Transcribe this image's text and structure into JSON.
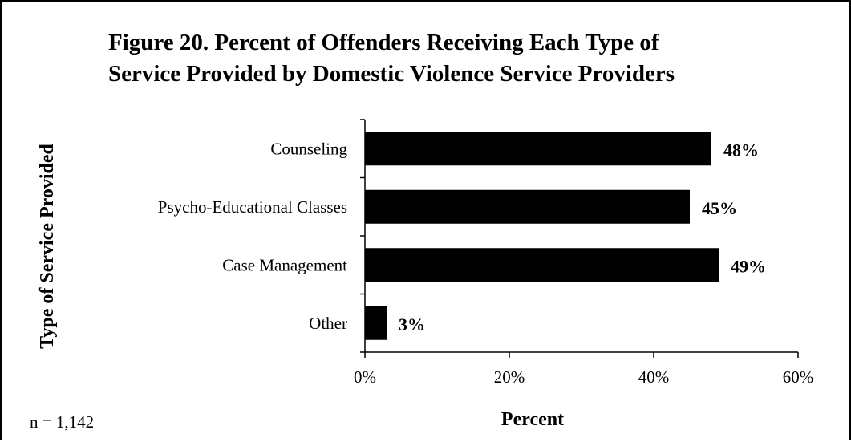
{
  "chart_data": {
    "type": "bar",
    "orientation": "horizontal",
    "title_lines": [
      "Figure 20. Percent of Offenders Receiving Each Type of",
      "Service Provided by Domestic Violence Service Providers"
    ],
    "categories": [
      "Counseling",
      "Psycho-Educational Classes",
      "Case Management",
      "Other"
    ],
    "values": [
      48,
      45,
      49,
      3
    ],
    "data_labels": [
      "48%",
      "45%",
      "49%",
      "3%"
    ],
    "xlabel": "Percent",
    "ylabel": "Type of Service Provided",
    "xlim": [
      0,
      60
    ],
    "xticks": [
      0,
      20,
      40,
      60
    ],
    "xtick_labels": [
      "0%",
      "20%",
      "40%",
      "60%"
    ],
    "grid": false,
    "bar_color": "#000000",
    "note": "n = 1,142"
  }
}
